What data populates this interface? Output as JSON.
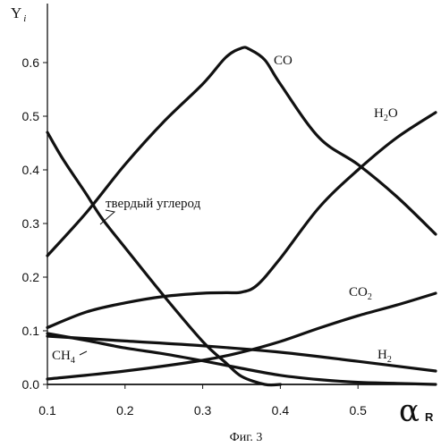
{
  "chart_data": {
    "type": "line",
    "ylabel": "Y",
    "ylabel_sub": "i",
    "xlabel": "α",
    "xlabel_sub": "R",
    "caption": "Фиг. 3",
    "xlim": [
      0.1,
      0.6
    ],
    "ylim": [
      0,
      0.7
    ],
    "xticks": [
      "0.1",
      "0.2",
      "0.3",
      "0.4",
      "0.5"
    ],
    "yticks": [
      "0.0",
      "0.1",
      "0.2",
      "0.3",
      "0.4",
      "0.5",
      "0.6"
    ],
    "grid": false,
    "series": [
      {
        "name": "CO",
        "x": [
          0.1,
          0.15,
          0.2,
          0.25,
          0.3,
          0.33,
          0.35,
          0.36,
          0.38,
          0.4,
          0.45,
          0.5,
          0.55,
          0.6
        ],
        "y": [
          0.24,
          0.32,
          0.41,
          0.49,
          0.56,
          0.61,
          0.627,
          0.625,
          0.605,
          0.56,
          0.46,
          0.41,
          0.35,
          0.28
        ]
      },
      {
        "name": "H2O",
        "x": [
          0.1,
          0.15,
          0.2,
          0.25,
          0.3,
          0.33,
          0.35,
          0.37,
          0.4,
          0.45,
          0.5,
          0.55,
          0.6
        ],
        "y": [
          0.106,
          0.135,
          0.152,
          0.164,
          0.17,
          0.171,
          0.172,
          0.185,
          0.235,
          0.33,
          0.4,
          0.46,
          0.507
        ]
      },
      {
        "name": "твердый углерод",
        "x": [
          0.1,
          0.12,
          0.15,
          0.17,
          0.2,
          0.25,
          0.3,
          0.33,
          0.35,
          0.38,
          0.4
        ],
        "y": [
          0.47,
          0.42,
          0.355,
          0.31,
          0.255,
          0.165,
          0.08,
          0.04,
          0.015,
          0.0,
          0.0
        ]
      },
      {
        "name": "CO2",
        "x": [
          0.1,
          0.2,
          0.3,
          0.35,
          0.4,
          0.45,
          0.5,
          0.55,
          0.6
        ],
        "y": [
          0.01,
          0.025,
          0.045,
          0.06,
          0.08,
          0.105,
          0.128,
          0.148,
          0.17
        ]
      },
      {
        "name": "H2",
        "x": [
          0.1,
          0.2,
          0.3,
          0.4,
          0.5,
          0.6
        ],
        "y": [
          0.09,
          0.081,
          0.072,
          0.06,
          0.043,
          0.025
        ]
      },
      {
        "name": "CH4",
        "x": [
          0.1,
          0.15,
          0.2,
          0.25,
          0.3,
          0.35,
          0.4,
          0.45,
          0.5,
          0.55,
          0.6
        ],
        "y": [
          0.095,
          0.082,
          0.068,
          0.057,
          0.044,
          0.03,
          0.017,
          0.009,
          0.004,
          0.002,
          0.0
        ]
      }
    ],
    "labels": [
      {
        "text": "CO",
        "sub": ""
      },
      {
        "text": "H",
        "sub": "2",
        "after": "O"
      },
      {
        "text": "твердый углерод",
        "sub": ""
      },
      {
        "text": "CO",
        "sub": "2"
      },
      {
        "text": "H",
        "sub": "2"
      },
      {
        "text": "CH",
        "sub": "4"
      }
    ]
  }
}
